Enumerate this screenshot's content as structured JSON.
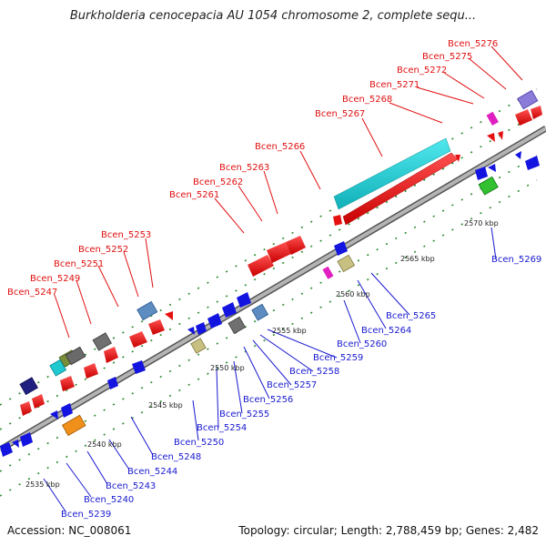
{
  "title": "Burkholderia cenocepacia AU 1054 chromosome 2, complete sequ...",
  "accession": "Accession: NC_008061",
  "topology": "Topology: circular; Length: 2,788,459 bp; Genes: 2,482",
  "colors": {
    "forward_gene": "#e61010",
    "reverse_gene": "#1414e0",
    "backbone": "#a8a8a8",
    "forward_label": "#e01010",
    "reverse_label": "#1a1ad0",
    "tick": "#2e8b2e"
  },
  "scale_ticks": [
    {
      "label": "2535 kbp"
    },
    {
      "label": "2540 kbp"
    },
    {
      "label": "2545 kbp"
    },
    {
      "label": "2550 kbp"
    },
    {
      "label": "2555 kbp"
    },
    {
      "label": "2560 kbp"
    },
    {
      "label": "2565 kbp"
    },
    {
      "label": "2570 kbp"
    }
  ],
  "forward_labels": [
    {
      "label": "Bcen_5247"
    },
    {
      "label": "Bcen_5249"
    },
    {
      "label": "Bcen_5251"
    },
    {
      "label": "Bcen_5252"
    },
    {
      "label": "Bcen_5253"
    },
    {
      "label": "Bcen_5261"
    },
    {
      "label": "Bcen_5262"
    },
    {
      "label": "Bcen_5263"
    },
    {
      "label": "Bcen_5266"
    },
    {
      "label": "Bcen_5267"
    },
    {
      "label": "Bcen_5268"
    },
    {
      "label": "Bcen_5271"
    },
    {
      "label": "Bcen_5272"
    },
    {
      "label": "Bcen_5275"
    },
    {
      "label": "Bcen_5276"
    }
  ],
  "reverse_labels": [
    {
      "label": "Bcen_5239"
    },
    {
      "label": "Bcen_5240"
    },
    {
      "label": "Bcen_5243"
    },
    {
      "label": "Bcen_5244"
    },
    {
      "label": "Bcen_5248"
    },
    {
      "label": "Bcen_5250"
    },
    {
      "label": "Bcen_5254"
    },
    {
      "label": "Bcen_5255"
    },
    {
      "label": "Bcen_5256"
    },
    {
      "label": "Bcen_5257"
    },
    {
      "label": "Bcen_5258"
    },
    {
      "label": "Bcen_5259"
    },
    {
      "label": "Bcen_5260"
    },
    {
      "label": "Bcen_5264"
    },
    {
      "label": "Bcen_5265"
    },
    {
      "label": "Bcen_5269"
    }
  ]
}
